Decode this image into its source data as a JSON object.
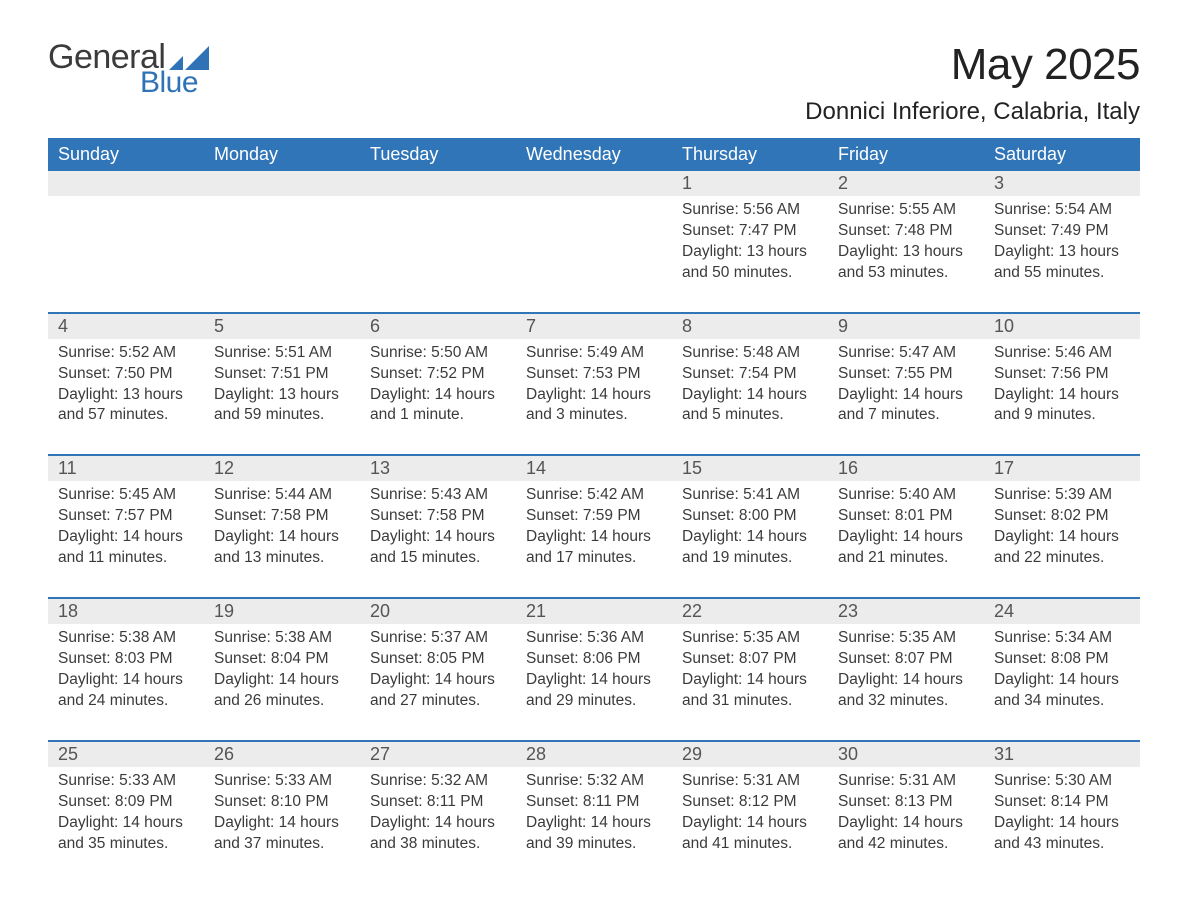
{
  "brand": {
    "word1": "General",
    "word2": "Blue",
    "color_general": "#3b3b3b",
    "color_blue": "#2f72b5",
    "shape_color": "#2f72b5"
  },
  "title": "May 2025",
  "location": "Donnici Inferiore, Calabria, Italy",
  "header_bg": "#3075b8",
  "header_fg": "#ffffff",
  "daynum_bg": "#ececec",
  "rule_color": "#3075b8",
  "text_color": "#3b3b3b",
  "fonts": {
    "title_pt": 44,
    "location_pt": 24,
    "header_pt": 18,
    "daynum_pt": 18,
    "body_pt": 15.5
  },
  "day_labels": [
    "Sunday",
    "Monday",
    "Tuesday",
    "Wednesday",
    "Thursday",
    "Friday",
    "Saturday"
  ],
  "weeks": [
    [
      null,
      null,
      null,
      null,
      {
        "n": "1",
        "sunrise": "Sunrise: 5:56 AM",
        "sunset": "Sunset: 7:47 PM",
        "daylight": "Daylight: 13 hours and 50 minutes."
      },
      {
        "n": "2",
        "sunrise": "Sunrise: 5:55 AM",
        "sunset": "Sunset: 7:48 PM",
        "daylight": "Daylight: 13 hours and 53 minutes."
      },
      {
        "n": "3",
        "sunrise": "Sunrise: 5:54 AM",
        "sunset": "Sunset: 7:49 PM",
        "daylight": "Daylight: 13 hours and 55 minutes."
      }
    ],
    [
      {
        "n": "4",
        "sunrise": "Sunrise: 5:52 AM",
        "sunset": "Sunset: 7:50 PM",
        "daylight": "Daylight: 13 hours and 57 minutes."
      },
      {
        "n": "5",
        "sunrise": "Sunrise: 5:51 AM",
        "sunset": "Sunset: 7:51 PM",
        "daylight": "Daylight: 13 hours and 59 minutes."
      },
      {
        "n": "6",
        "sunrise": "Sunrise: 5:50 AM",
        "sunset": "Sunset: 7:52 PM",
        "daylight": "Daylight: 14 hours and 1 minute."
      },
      {
        "n": "7",
        "sunrise": "Sunrise: 5:49 AM",
        "sunset": "Sunset: 7:53 PM",
        "daylight": "Daylight: 14 hours and 3 minutes."
      },
      {
        "n": "8",
        "sunrise": "Sunrise: 5:48 AM",
        "sunset": "Sunset: 7:54 PM",
        "daylight": "Daylight: 14 hours and 5 minutes."
      },
      {
        "n": "9",
        "sunrise": "Sunrise: 5:47 AM",
        "sunset": "Sunset: 7:55 PM",
        "daylight": "Daylight: 14 hours and 7 minutes."
      },
      {
        "n": "10",
        "sunrise": "Sunrise: 5:46 AM",
        "sunset": "Sunset: 7:56 PM",
        "daylight": "Daylight: 14 hours and 9 minutes."
      }
    ],
    [
      {
        "n": "11",
        "sunrise": "Sunrise: 5:45 AM",
        "sunset": "Sunset: 7:57 PM",
        "daylight": "Daylight: 14 hours and 11 minutes."
      },
      {
        "n": "12",
        "sunrise": "Sunrise: 5:44 AM",
        "sunset": "Sunset: 7:58 PM",
        "daylight": "Daylight: 14 hours and 13 minutes."
      },
      {
        "n": "13",
        "sunrise": "Sunrise: 5:43 AM",
        "sunset": "Sunset: 7:58 PM",
        "daylight": "Daylight: 14 hours and 15 minutes."
      },
      {
        "n": "14",
        "sunrise": "Sunrise: 5:42 AM",
        "sunset": "Sunset: 7:59 PM",
        "daylight": "Daylight: 14 hours and 17 minutes."
      },
      {
        "n": "15",
        "sunrise": "Sunrise: 5:41 AM",
        "sunset": "Sunset: 8:00 PM",
        "daylight": "Daylight: 14 hours and 19 minutes."
      },
      {
        "n": "16",
        "sunrise": "Sunrise: 5:40 AM",
        "sunset": "Sunset: 8:01 PM",
        "daylight": "Daylight: 14 hours and 21 minutes."
      },
      {
        "n": "17",
        "sunrise": "Sunrise: 5:39 AM",
        "sunset": "Sunset: 8:02 PM",
        "daylight": "Daylight: 14 hours and 22 minutes."
      }
    ],
    [
      {
        "n": "18",
        "sunrise": "Sunrise: 5:38 AM",
        "sunset": "Sunset: 8:03 PM",
        "daylight": "Daylight: 14 hours and 24 minutes."
      },
      {
        "n": "19",
        "sunrise": "Sunrise: 5:38 AM",
        "sunset": "Sunset: 8:04 PM",
        "daylight": "Daylight: 14 hours and 26 minutes."
      },
      {
        "n": "20",
        "sunrise": "Sunrise: 5:37 AM",
        "sunset": "Sunset: 8:05 PM",
        "daylight": "Daylight: 14 hours and 27 minutes."
      },
      {
        "n": "21",
        "sunrise": "Sunrise: 5:36 AM",
        "sunset": "Sunset: 8:06 PM",
        "daylight": "Daylight: 14 hours and 29 minutes."
      },
      {
        "n": "22",
        "sunrise": "Sunrise: 5:35 AM",
        "sunset": "Sunset: 8:07 PM",
        "daylight": "Daylight: 14 hours and 31 minutes."
      },
      {
        "n": "23",
        "sunrise": "Sunrise: 5:35 AM",
        "sunset": "Sunset: 8:07 PM",
        "daylight": "Daylight: 14 hours and 32 minutes."
      },
      {
        "n": "24",
        "sunrise": "Sunrise: 5:34 AM",
        "sunset": "Sunset: 8:08 PM",
        "daylight": "Daylight: 14 hours and 34 minutes."
      }
    ],
    [
      {
        "n": "25",
        "sunrise": "Sunrise: 5:33 AM",
        "sunset": "Sunset: 8:09 PM",
        "daylight": "Daylight: 14 hours and 35 minutes."
      },
      {
        "n": "26",
        "sunrise": "Sunrise: 5:33 AM",
        "sunset": "Sunset: 8:10 PM",
        "daylight": "Daylight: 14 hours and 37 minutes."
      },
      {
        "n": "27",
        "sunrise": "Sunrise: 5:32 AM",
        "sunset": "Sunset: 8:11 PM",
        "daylight": "Daylight: 14 hours and 38 minutes."
      },
      {
        "n": "28",
        "sunrise": "Sunrise: 5:32 AM",
        "sunset": "Sunset: 8:11 PM",
        "daylight": "Daylight: 14 hours and 39 minutes."
      },
      {
        "n": "29",
        "sunrise": "Sunrise: 5:31 AM",
        "sunset": "Sunset: 8:12 PM",
        "daylight": "Daylight: 14 hours and 41 minutes."
      },
      {
        "n": "30",
        "sunrise": "Sunrise: 5:31 AM",
        "sunset": "Sunset: 8:13 PM",
        "daylight": "Daylight: 14 hours and 42 minutes."
      },
      {
        "n": "31",
        "sunrise": "Sunrise: 5:30 AM",
        "sunset": "Sunset: 8:14 PM",
        "daylight": "Daylight: 14 hours and 43 minutes."
      }
    ]
  ]
}
